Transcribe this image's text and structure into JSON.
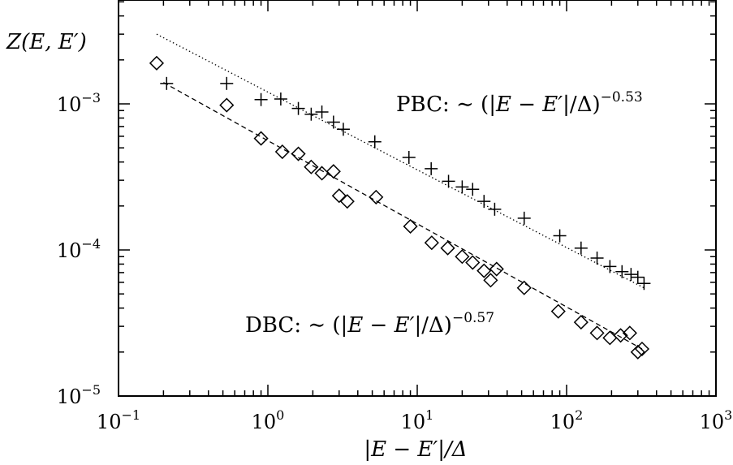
{
  "chart_data": {
    "type": "scatter",
    "xscale": "log",
    "yscale": "log",
    "xlim": [
      0.1,
      1000
    ],
    "ylim": [
      1e-05,
      0.005
    ],
    "xlabel": "|E − E′|/Δ",
    "ylabel": "Z(E, E′)",
    "x_ticks": [
      {
        "value": 0.1,
        "base": "10",
        "exp": "−1"
      },
      {
        "value": 1,
        "base": "10",
        "exp": "0"
      },
      {
        "value": 10,
        "base": "10",
        "exp": "1"
      },
      {
        "value": 100,
        "base": "10",
        "exp": "2"
      },
      {
        "value": 1000,
        "base": "10",
        "exp": "3"
      }
    ],
    "y_ticks": [
      {
        "value": 1e-05,
        "base": "10",
        "exp": "−5"
      },
      {
        "value": 0.0001,
        "base": "10",
        "exp": "−4"
      },
      {
        "value": 0.001,
        "base": "10",
        "exp": "−3"
      }
    ],
    "series": [
      {
        "marker": "plus",
        "x": [
          0.21,
          0.53,
          0.9,
          1.22,
          1.6,
          1.95,
          2.3,
          2.75,
          3.2,
          5.2,
          8.8,
          12.4,
          16.2,
          20.0,
          23.5,
          28.0,
          33.0,
          52.0,
          90.0,
          125.0,
          160.0,
          195.0,
          235.0,
          270.0,
          300.0,
          330.0
        ],
        "y": [
          0.00138,
          0.00138,
          0.00107,
          0.00108,
          0.00093,
          0.00085,
          0.00088,
          0.00075,
          0.00067,
          0.00055,
          0.00043,
          0.00036,
          0.000295,
          0.00027,
          0.00026,
          0.000215,
          0.00019,
          0.000165,
          0.000125,
          0.000103,
          8.8e-05,
          7.7e-05,
          7.1e-05,
          6.8e-05,
          6.5e-05,
          5.9e-05
        ]
      },
      {
        "marker": "diamond",
        "x": [
          0.18,
          0.53,
          0.9,
          1.25,
          1.6,
          1.95,
          2.3,
          2.75,
          3.0,
          3.4,
          5.3,
          9.0,
          12.5,
          16.0,
          20.0,
          23.5,
          28.0,
          31.0,
          34.0,
          52.0,
          88.0,
          125.0,
          160.0,
          195.0,
          230.0,
          265.0,
          300.0,
          320.0
        ],
        "y": [
          0.0019,
          0.00098,
          0.00058,
          0.00047,
          0.000455,
          0.00037,
          0.000335,
          0.000345,
          0.000235,
          0.000215,
          0.00023,
          0.000145,
          0.000112,
          0.000103,
          9e-05,
          8.2e-05,
          7.2e-05,
          6.2e-05,
          7.4e-05,
          5.5e-05,
          3.8e-05,
          3.2e-05,
          2.7e-05,
          2.5e-05,
          2.6e-05,
          2.7e-05,
          2e-05,
          2.1e-05
        ]
      }
    ],
    "fits": [
      {
        "style": "dotted",
        "x": [
          0.18,
          330.0
        ],
        "y": [
          0.003,
          5.5e-05
        ]
      },
      {
        "style": "dashed",
        "x": [
          0.2,
          320.0
        ],
        "y": [
          0.0014,
          2.1e-05
        ]
      }
    ],
    "annotations": [
      {
        "name": "pbc",
        "prefix": "PBC: ∼ (|",
        "var1": "E",
        "mid": " − ",
        "var2": "E′",
        "suffix": "|/Δ)",
        "exp": "−0.53"
      },
      {
        "name": "dbc",
        "prefix": "DBC: ∼ (|",
        "var1": "E",
        "mid": " − ",
        "var2": "E′",
        "suffix": "|/Δ)",
        "exp": "−0.57"
      }
    ]
  }
}
